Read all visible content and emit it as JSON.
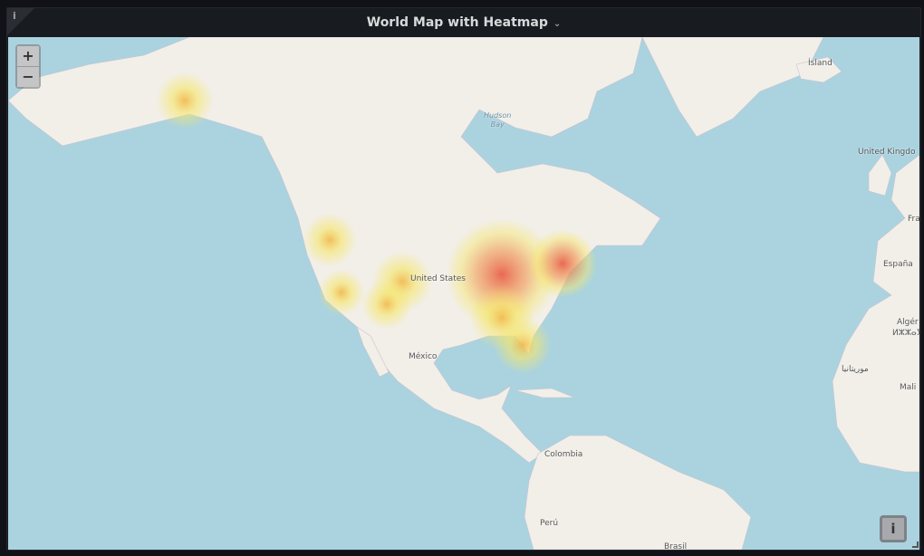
{
  "panel": {
    "title": "World Map with Heatmap",
    "info_icon": "info-icon",
    "menu_icon": "chevron-down-icon"
  },
  "controls": {
    "zoom_in": "+",
    "zoom_out": "−",
    "attribution": "i"
  },
  "colors": {
    "water": "#aad3df",
    "land": "#f2efe9",
    "heat_low": "#f5e66a",
    "heat_high": "#e8503a"
  },
  "labels": {
    "iceland": "Ísland",
    "hudson": "Hudson",
    "bay": "Bay",
    "uk": "United Kingdo",
    "france": "Fra",
    "spain": "España",
    "algeria": "Algér",
    "algeria_tif": "ⵍⵣⵣⴰⵢ",
    "mauritania": "موريتانيا",
    "mali": "Mali",
    "usa": "United States",
    "mexico": "México",
    "colombia": "Colombia",
    "peru": "Perú",
    "brazil": "Brasil"
  }
}
